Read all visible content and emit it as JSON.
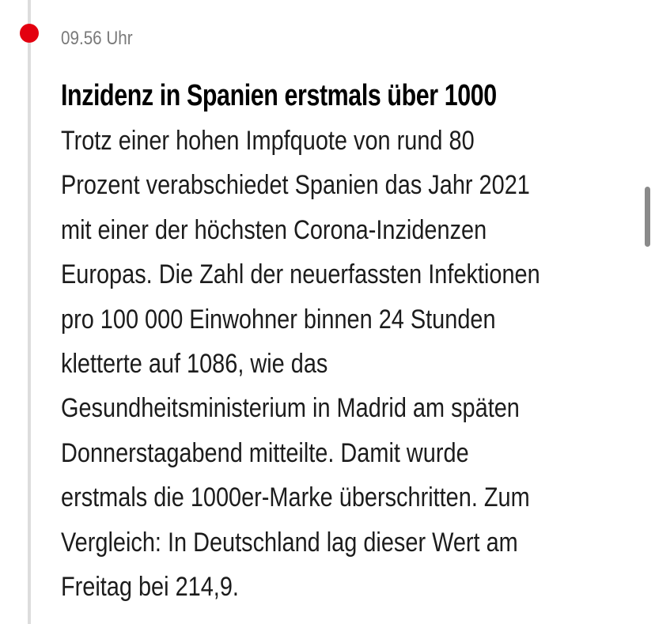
{
  "entry": {
    "time": "09.56 Uhr",
    "headline": "Inzidenz in Spanien erstmals über 1000",
    "body_lines": [
      "Trotz einer hohen Impfquote von rund 80",
      "Prozent verabschiedet Spanien das Jahr 2021",
      "mit einer der höchsten Corona-Inzidenzen",
      "Europas. Die Zahl der neuerfassten Infektionen",
      "pro 100 000 Einwohner binnen 24 Stunden",
      "kletterte auf 1086, wie das",
      "Gesundheitsministerium in Madrid am späten",
      "Donnerstagabend mitteilte. Damit wurde",
      "erstmals die 1000er-Marke überschritten. Zum",
      "Vergleich: In Deutschland lag dieser Wert am",
      "Freitag bei 214,9."
    ]
  },
  "colors": {
    "accent": "#e3000f",
    "timeline": "#dddddd",
    "time_text": "#7a7a7a",
    "text": "#1c1c1c"
  }
}
